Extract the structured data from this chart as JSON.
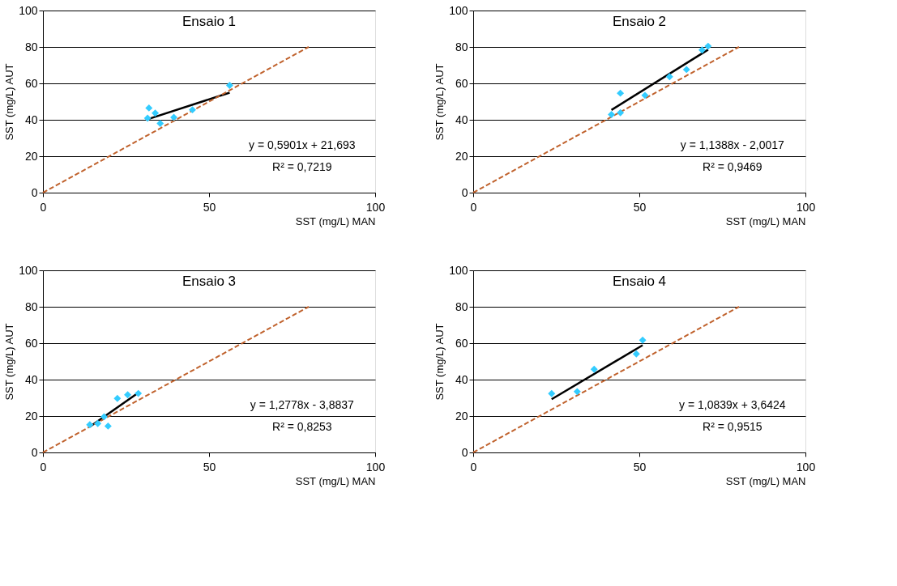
{
  "chart_data": [
    {
      "type": "scatter",
      "title": "Ensaio 1",
      "xlabel": "SST (mg/L) MAN",
      "ylabel": "SST (mg/L) AUT",
      "xlim": [
        0,
        100
      ],
      "ylim": [
        0,
        100
      ],
      "xticks": [
        0,
        50,
        100
      ],
      "yticks": [
        0,
        20,
        40,
        60,
        80,
        100
      ],
      "grid": "y",
      "annotations": [
        "y = 0,5901x + 21,693",
        "R² = 0,7219"
      ],
      "series": [
        {
          "type": "scatter",
          "marker": "diamond",
          "color": "#33ccff",
          "x": [
            31.9,
            31.5,
            33.8,
            35.3,
            39.4,
            45,
            56.2
          ],
          "values": [
            46.5,
            40.9,
            43.7,
            38,
            41.3,
            45.5,
            58.9
          ]
        },
        {
          "type": "line",
          "line_style": "solid",
          "color": "#000000",
          "x": [
            31.5,
            56.2
          ],
          "values": [
            40.3,
            54.9
          ]
        },
        {
          "type": "line",
          "line_style": "dashed",
          "color": "#c0622d",
          "x": [
            0,
            80
          ],
          "values": [
            0,
            80
          ]
        }
      ]
    },
    {
      "type": "scatter",
      "title": "Ensaio 2",
      "xlabel": "SST (mg/L) MAN",
      "ylabel": "SST (mg/L) AUT",
      "xlim": [
        0,
        100
      ],
      "ylim": [
        0,
        100
      ],
      "xticks": [
        0,
        50,
        100
      ],
      "yticks": [
        0,
        20,
        40,
        60,
        80,
        100
      ],
      "grid": "y",
      "annotations": [
        "y = 1,1388x - 2,0017",
        "R² = 0,9469"
      ],
      "series": [
        {
          "type": "scatter",
          "marker": "diamond",
          "color": "#33ccff",
          "x": [
            41.6,
            44.3,
            44.3,
            51.7,
            59.1,
            64.2,
            68.9,
            70.7
          ],
          "values": [
            42.9,
            43.9,
            54.6,
            53.4,
            63.7,
            67.6,
            78.3,
            80.4
          ]
        },
        {
          "type": "line",
          "line_style": "solid",
          "color": "#000000",
          "x": [
            41.6,
            70.7
          ],
          "values": [
            45.4,
            78.5
          ]
        },
        {
          "type": "line",
          "line_style": "dashed",
          "color": "#c0622d",
          "x": [
            0,
            80
          ],
          "values": [
            0,
            80
          ]
        }
      ]
    },
    {
      "type": "scatter",
      "title": "Ensaio 3",
      "xlabel": "SST (mg/L) MAN",
      "ylabel": "SST (mg/L) AUT",
      "xlim": [
        0,
        100
      ],
      "ylim": [
        0,
        100
      ],
      "xticks": [
        0,
        50,
        100
      ],
      "yticks": [
        0,
        20,
        40,
        60,
        80,
        100
      ],
      "grid": "y",
      "annotations": [
        "y = 1,2778x - 3,8837",
        "R² = 0,8253"
      ],
      "series": [
        {
          "type": "scatter",
          "marker": "diamond",
          "color": "#33ccff",
          "x": [
            14.1,
            16.5,
            19.6,
            18.4,
            22.4,
            25.5,
            28.7
          ],
          "values": [
            15.2,
            15.9,
            14.5,
            19.6,
            29.7,
            31.7,
            32.4
          ]
        },
        {
          "type": "line",
          "line_style": "solid",
          "color": "#000000",
          "x": [
            14.1,
            28.7
          ],
          "values": [
            14.1,
            32.8
          ]
        },
        {
          "type": "line",
          "line_style": "dashed",
          "color": "#c0622d",
          "x": [
            0,
            80
          ],
          "values": [
            0,
            80
          ]
        }
      ]
    },
    {
      "type": "scatter",
      "title": "Ensaio 4",
      "xlabel": "SST (mg/L) MAN",
      "ylabel": "SST (mg/L) AUT",
      "xlim": [
        0,
        100
      ],
      "ylim": [
        0,
        100
      ],
      "xticks": [
        0,
        50,
        100
      ],
      "yticks": [
        0,
        20,
        40,
        60,
        80,
        100
      ],
      "grid": "y",
      "annotations": [
        "y = 1,0839x + 3,6424",
        "R² = 0,9515"
      ],
      "series": [
        {
          "type": "scatter",
          "marker": "diamond",
          "color": "#33ccff",
          "x": [
            23.6,
            31.3,
            36.4,
            49.1,
            51
          ],
          "values": [
            32.3,
            33.4,
            45.7,
            54.1,
            61.7
          ]
        },
        {
          "type": "line",
          "line_style": "solid",
          "color": "#000000",
          "x": [
            23.6,
            51
          ],
          "values": [
            29.2,
            58.9
          ]
        },
        {
          "type": "line",
          "line_style": "dashed",
          "color": "#c0622d",
          "x": [
            0,
            80
          ],
          "values": [
            0,
            80
          ]
        }
      ]
    }
  ]
}
